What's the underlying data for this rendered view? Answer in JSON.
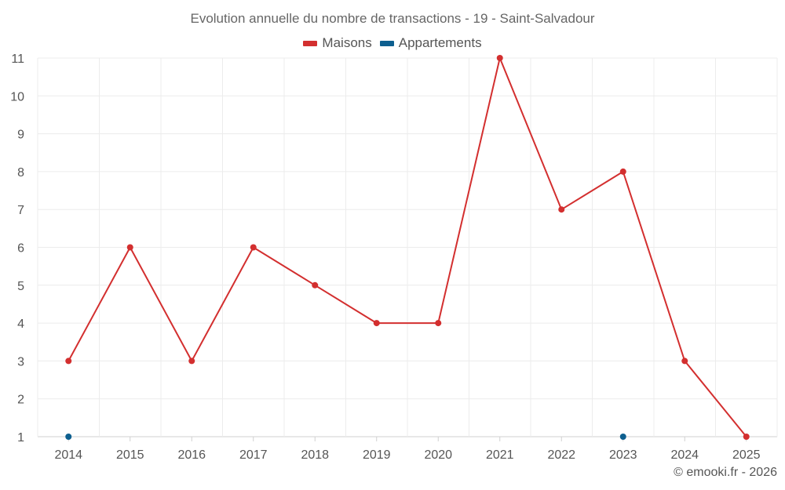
{
  "chart_data": {
    "type": "line",
    "title": "Evolution annuelle du nombre de transactions - 19 - Saint-Salvadour",
    "x": [
      "2014",
      "2015",
      "2016",
      "2017",
      "2018",
      "2019",
      "2020",
      "2021",
      "2022",
      "2023",
      "2024",
      "2025"
    ],
    "ylim": [
      1,
      11
    ],
    "yticks": [
      1,
      2,
      3,
      4,
      5,
      6,
      7,
      8,
      9,
      10,
      11
    ],
    "grid": true,
    "legend_position": "top-center",
    "series": [
      {
        "name": "Maisons",
        "color": "#d32f2f",
        "values": [
          3,
          6,
          3,
          6,
          5,
          4,
          4,
          11,
          7,
          8,
          3,
          1
        ]
      },
      {
        "name": "Appartements",
        "color": "#0d5f8f",
        "values": [
          1,
          null,
          null,
          null,
          null,
          null,
          null,
          null,
          null,
          1,
          null,
          null
        ]
      }
    ]
  },
  "credit": "© emooki.fr - 2026"
}
